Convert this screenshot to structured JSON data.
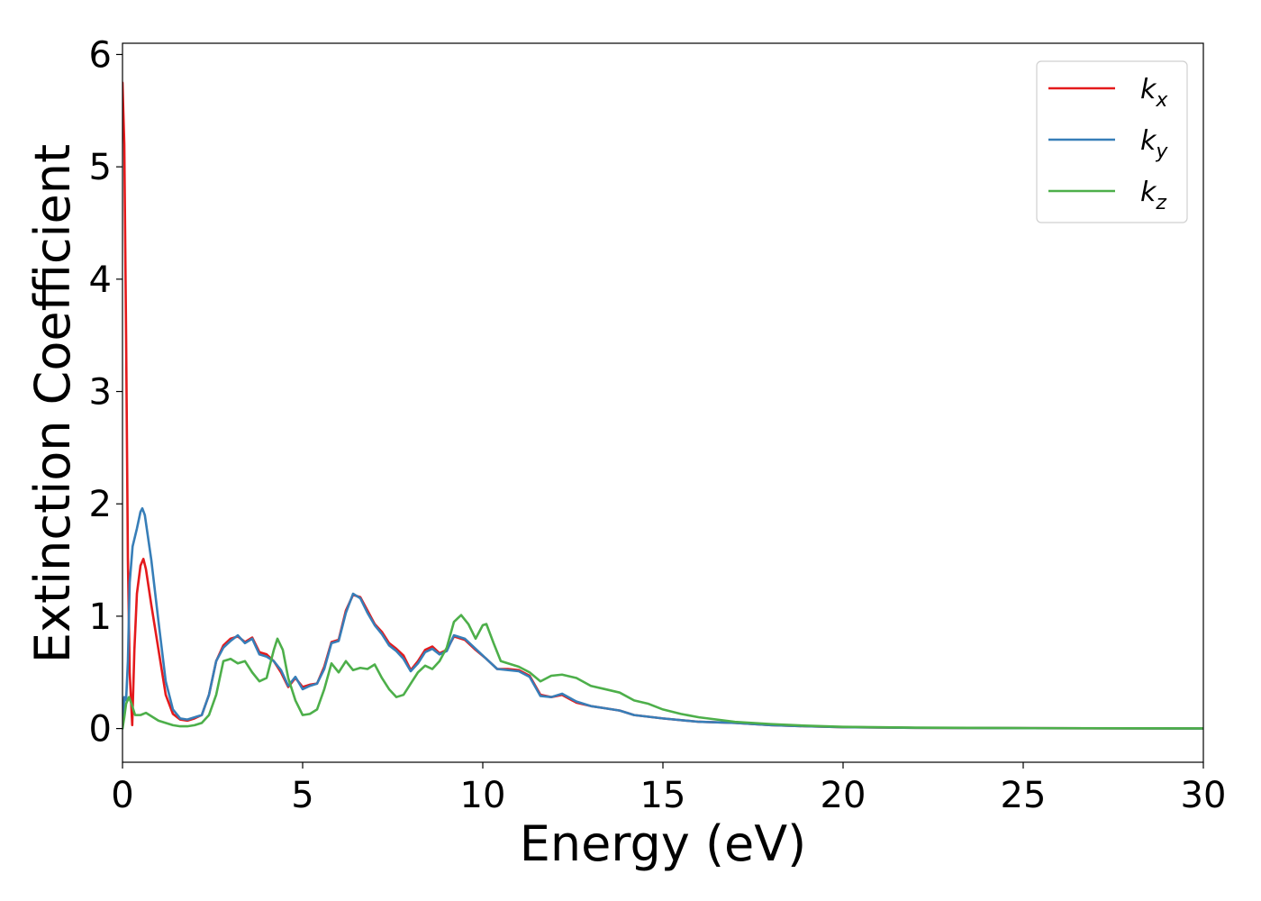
{
  "chart_data": {
    "type": "line",
    "xlabel": "Energy (eV)",
    "ylabel": "Extinction Coefficient",
    "xlim": [
      0,
      30
    ],
    "ylim": [
      -0.3,
      6.1
    ],
    "x_ticks": [
      "0",
      "5",
      "10",
      "15",
      "20",
      "25",
      "30"
    ],
    "y_ticks": [
      "0",
      "1",
      "2",
      "3",
      "4",
      "5",
      "6"
    ],
    "legend_position": "top-right",
    "grid": false,
    "series": [
      {
        "name": "k",
        "subscript": "x",
        "color": "#e41a1c",
        "points": [
          [
            0,
            5.75
          ],
          [
            0.05,
            5.2
          ],
          [
            0.1,
            3.5
          ],
          [
            0.15,
            1.5
          ],
          [
            0.2,
            0.5
          ],
          [
            0.27,
            0.03
          ],
          [
            0.33,
            0.7
          ],
          [
            0.4,
            1.2
          ],
          [
            0.5,
            1.45
          ],
          [
            0.58,
            1.51
          ],
          [
            0.65,
            1.42
          ],
          [
            0.8,
            1.1
          ],
          [
            1.0,
            0.7
          ],
          [
            1.2,
            0.3
          ],
          [
            1.4,
            0.13
          ],
          [
            1.6,
            0.08
          ],
          [
            1.8,
            0.07
          ],
          [
            2.0,
            0.09
          ],
          [
            2.2,
            0.12
          ],
          [
            2.4,
            0.3
          ],
          [
            2.6,
            0.6
          ],
          [
            2.8,
            0.74
          ],
          [
            3.0,
            0.8
          ],
          [
            3.2,
            0.82
          ],
          [
            3.4,
            0.77
          ],
          [
            3.6,
            0.81
          ],
          [
            3.8,
            0.68
          ],
          [
            4.0,
            0.66
          ],
          [
            4.2,
            0.6
          ],
          [
            4.4,
            0.5
          ],
          [
            4.6,
            0.37
          ],
          [
            4.8,
            0.45
          ],
          [
            5.0,
            0.37
          ],
          [
            5.2,
            0.39
          ],
          [
            5.4,
            0.4
          ],
          [
            5.6,
            0.55
          ],
          [
            5.8,
            0.77
          ],
          [
            6.0,
            0.79
          ],
          [
            6.2,
            1.05
          ],
          [
            6.4,
            1.19
          ],
          [
            6.6,
            1.17
          ],
          [
            6.8,
            1.05
          ],
          [
            7.0,
            0.93
          ],
          [
            7.2,
            0.86
          ],
          [
            7.4,
            0.76
          ],
          [
            7.6,
            0.71
          ],
          [
            7.8,
            0.65
          ],
          [
            8.0,
            0.52
          ],
          [
            8.2,
            0.6
          ],
          [
            8.4,
            0.7
          ],
          [
            8.6,
            0.73
          ],
          [
            8.8,
            0.67
          ],
          [
            9.0,
            0.7
          ],
          [
            9.2,
            0.82
          ],
          [
            9.5,
            0.79
          ],
          [
            9.8,
            0.7
          ],
          [
            10.1,
            0.62
          ],
          [
            10.4,
            0.53
          ],
          [
            10.7,
            0.53
          ],
          [
            11.0,
            0.52
          ],
          [
            11.3,
            0.47
          ],
          [
            11.6,
            0.3
          ],
          [
            11.9,
            0.28
          ],
          [
            12.2,
            0.3
          ],
          [
            12.6,
            0.23
          ],
          [
            13.0,
            0.2
          ],
          [
            13.4,
            0.18
          ],
          [
            13.8,
            0.16
          ],
          [
            14.2,
            0.12
          ],
          [
            15.0,
            0.09
          ],
          [
            16.0,
            0.06
          ],
          [
            17.0,
            0.05
          ],
          [
            18.0,
            0.03
          ],
          [
            19.0,
            0.02
          ],
          [
            20.0,
            0.012
          ],
          [
            22.0,
            0.006
          ],
          [
            25.0,
            0.003
          ],
          [
            30.0,
            0.0
          ]
        ]
      },
      {
        "name": "k",
        "subscript": "y",
        "color": "#377eb8",
        "points": [
          [
            0,
            0.0
          ],
          [
            0.05,
            0.28
          ],
          [
            0.1,
            0.25
          ],
          [
            0.15,
            0.6
          ],
          [
            0.2,
            1.3
          ],
          [
            0.28,
            1.62
          ],
          [
            0.4,
            1.78
          ],
          [
            0.5,
            1.93
          ],
          [
            0.55,
            1.96
          ],
          [
            0.62,
            1.9
          ],
          [
            0.8,
            1.5
          ],
          [
            1.0,
            0.95
          ],
          [
            1.2,
            0.42
          ],
          [
            1.4,
            0.17
          ],
          [
            1.6,
            0.09
          ],
          [
            1.8,
            0.08
          ],
          [
            2.0,
            0.1
          ],
          [
            2.2,
            0.12
          ],
          [
            2.4,
            0.3
          ],
          [
            2.6,
            0.6
          ],
          [
            2.8,
            0.72
          ],
          [
            3.0,
            0.78
          ],
          [
            3.2,
            0.83
          ],
          [
            3.4,
            0.76
          ],
          [
            3.6,
            0.8
          ],
          [
            3.8,
            0.66
          ],
          [
            4.0,
            0.64
          ],
          [
            4.2,
            0.6
          ],
          [
            4.4,
            0.52
          ],
          [
            4.6,
            0.38
          ],
          [
            4.8,
            0.46
          ],
          [
            5.0,
            0.35
          ],
          [
            5.2,
            0.38
          ],
          [
            5.4,
            0.4
          ],
          [
            5.6,
            0.53
          ],
          [
            5.8,
            0.76
          ],
          [
            6.0,
            0.78
          ],
          [
            6.2,
            1.03
          ],
          [
            6.4,
            1.2
          ],
          [
            6.6,
            1.16
          ],
          [
            6.8,
            1.03
          ],
          [
            7.0,
            0.92
          ],
          [
            7.2,
            0.84
          ],
          [
            7.4,
            0.74
          ],
          [
            7.6,
            0.69
          ],
          [
            7.8,
            0.62
          ],
          [
            8.0,
            0.51
          ],
          [
            8.2,
            0.58
          ],
          [
            8.4,
            0.68
          ],
          [
            8.6,
            0.71
          ],
          [
            8.8,
            0.66
          ],
          [
            9.0,
            0.69
          ],
          [
            9.2,
            0.83
          ],
          [
            9.5,
            0.8
          ],
          [
            9.8,
            0.71
          ],
          [
            10.1,
            0.62
          ],
          [
            10.4,
            0.53
          ],
          [
            10.7,
            0.52
          ],
          [
            11.0,
            0.51
          ],
          [
            11.3,
            0.46
          ],
          [
            11.6,
            0.29
          ],
          [
            11.9,
            0.28
          ],
          [
            12.2,
            0.31
          ],
          [
            12.6,
            0.24
          ],
          [
            13.0,
            0.2
          ],
          [
            13.4,
            0.18
          ],
          [
            13.8,
            0.16
          ],
          [
            14.2,
            0.12
          ],
          [
            15.0,
            0.09
          ],
          [
            16.0,
            0.06
          ],
          [
            17.0,
            0.05
          ],
          [
            18.0,
            0.03
          ],
          [
            19.0,
            0.02
          ],
          [
            20.0,
            0.012
          ],
          [
            22.0,
            0.006
          ],
          [
            25.0,
            0.003
          ],
          [
            30.0,
            0.0
          ]
        ]
      },
      {
        "name": "k",
        "subscript": "z",
        "color": "#4daf4a",
        "points": [
          [
            0,
            0.0
          ],
          [
            0.05,
            0.1
          ],
          [
            0.1,
            0.22
          ],
          [
            0.18,
            0.28
          ],
          [
            0.25,
            0.22
          ],
          [
            0.35,
            0.12
          ],
          [
            0.5,
            0.12
          ],
          [
            0.65,
            0.14
          ],
          [
            0.8,
            0.11
          ],
          [
            1.0,
            0.07
          ],
          [
            1.2,
            0.05
          ],
          [
            1.4,
            0.03
          ],
          [
            1.6,
            0.02
          ],
          [
            1.8,
            0.02
          ],
          [
            2.0,
            0.03
          ],
          [
            2.2,
            0.05
          ],
          [
            2.4,
            0.12
          ],
          [
            2.6,
            0.3
          ],
          [
            2.8,
            0.6
          ],
          [
            3.0,
            0.62
          ],
          [
            3.2,
            0.58
          ],
          [
            3.4,
            0.6
          ],
          [
            3.6,
            0.5
          ],
          [
            3.8,
            0.42
          ],
          [
            4.0,
            0.45
          ],
          [
            4.2,
            0.7
          ],
          [
            4.3,
            0.8
          ],
          [
            4.45,
            0.7
          ],
          [
            4.6,
            0.45
          ],
          [
            4.8,
            0.25
          ],
          [
            5.0,
            0.12
          ],
          [
            5.2,
            0.13
          ],
          [
            5.4,
            0.17
          ],
          [
            5.6,
            0.35
          ],
          [
            5.8,
            0.58
          ],
          [
            6.0,
            0.5
          ],
          [
            6.2,
            0.6
          ],
          [
            6.4,
            0.52
          ],
          [
            6.6,
            0.54
          ],
          [
            6.8,
            0.53
          ],
          [
            7.0,
            0.57
          ],
          [
            7.2,
            0.45
          ],
          [
            7.4,
            0.35
          ],
          [
            7.6,
            0.28
          ],
          [
            7.8,
            0.3
          ],
          [
            8.0,
            0.4
          ],
          [
            8.2,
            0.5
          ],
          [
            8.4,
            0.56
          ],
          [
            8.6,
            0.53
          ],
          [
            8.8,
            0.6
          ],
          [
            9.0,
            0.72
          ],
          [
            9.2,
            0.95
          ],
          [
            9.4,
            1.01
          ],
          [
            9.6,
            0.93
          ],
          [
            9.8,
            0.8
          ],
          [
            10.0,
            0.92
          ],
          [
            10.1,
            0.93
          ],
          [
            10.3,
            0.76
          ],
          [
            10.5,
            0.6
          ],
          [
            10.8,
            0.57
          ],
          [
            11.0,
            0.55
          ],
          [
            11.3,
            0.5
          ],
          [
            11.6,
            0.42
          ],
          [
            11.9,
            0.47
          ],
          [
            12.2,
            0.48
          ],
          [
            12.6,
            0.45
          ],
          [
            13.0,
            0.38
          ],
          [
            13.4,
            0.35
          ],
          [
            13.8,
            0.32
          ],
          [
            14.2,
            0.25
          ],
          [
            14.6,
            0.22
          ],
          [
            15.0,
            0.17
          ],
          [
            15.5,
            0.13
          ],
          [
            16.0,
            0.1
          ],
          [
            16.5,
            0.08
          ],
          [
            17.0,
            0.06
          ],
          [
            18.0,
            0.04
          ],
          [
            19.0,
            0.025
          ],
          [
            20.0,
            0.015
          ],
          [
            22.0,
            0.008
          ],
          [
            25.0,
            0.004
          ],
          [
            30.0,
            0.001
          ]
        ]
      }
    ]
  }
}
